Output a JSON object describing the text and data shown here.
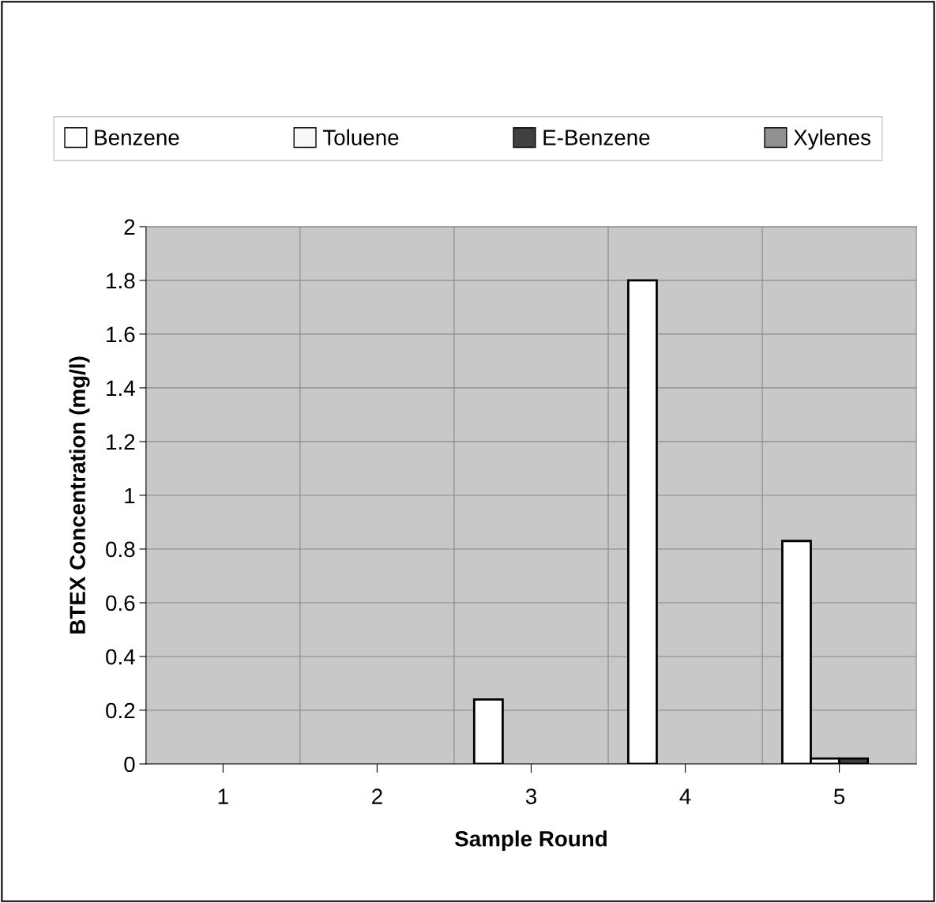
{
  "chart_data": {
    "type": "bar",
    "xlabel": "Sample Round",
    "ylabel": "BTEX Concentration (mg/l)",
    "categories": [
      "1",
      "2",
      "3",
      "4",
      "5"
    ],
    "series": [
      {
        "name": "Benzene",
        "color": "#ffffff",
        "values": [
          0,
          0,
          0.24,
          1.8,
          0.83
        ]
      },
      {
        "name": "Toluene",
        "color": "#f8f8f8",
        "values": [
          0,
          0,
          0,
          0,
          0.02
        ]
      },
      {
        "name": "E-Benzene",
        "color": "#404040",
        "values": [
          0,
          0,
          0,
          0,
          0.02
        ]
      },
      {
        "name": "Xylenes",
        "color": "#909090",
        "values": [
          0,
          0,
          0,
          0,
          0
        ]
      }
    ],
    "ylim": [
      0,
      2
    ],
    "yticks": [
      0,
      0.2,
      0.4,
      0.6,
      0.8,
      1,
      1.2,
      1.4,
      1.6,
      1.8,
      2
    ],
    "grid": true,
    "legend": "top"
  }
}
